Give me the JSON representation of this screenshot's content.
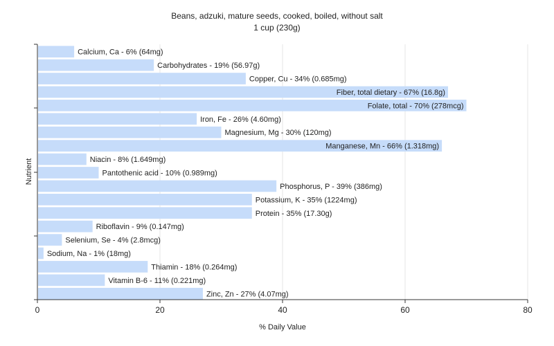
{
  "chart_data": {
    "type": "bar",
    "orientation": "horizontal",
    "title": "Beans, adzuki, mature seeds, cooked, boiled, without salt",
    "subtitle": "1 cup (230g)",
    "xlabel": "% Daily Value",
    "ylabel": "Nutrient",
    "xlim": [
      0,
      80
    ],
    "xticks": [
      "0",
      "20",
      "40",
      "60",
      "80"
    ],
    "grid": true,
    "bar_color": "#c6dcfa",
    "bars": [
      {
        "label": "Calcium, Ca - 6% (64mg)",
        "value": 6
      },
      {
        "label": "Carbohydrates - 19% (56.97g)",
        "value": 19
      },
      {
        "label": "Copper, Cu - 34% (0.685mg)",
        "value": 34
      },
      {
        "label": "Fiber, total dietary - 67% (16.8g)",
        "value": 67
      },
      {
        "label": "Folate, total - 70% (278mcg)",
        "value": 70
      },
      {
        "label": "Iron, Fe - 26% (4.60mg)",
        "value": 26
      },
      {
        "label": "Magnesium, Mg - 30% (120mg)",
        "value": 30
      },
      {
        "label": "Manganese, Mn - 66% (1.318mg)",
        "value": 66
      },
      {
        "label": "Niacin - 8% (1.649mg)",
        "value": 8
      },
      {
        "label": "Pantothenic acid - 10% (0.989mg)",
        "value": 10
      },
      {
        "label": "Phosphorus, P - 39% (386mg)",
        "value": 39
      },
      {
        "label": "Potassium, K - 35% (1224mg)",
        "value": 35
      },
      {
        "label": "Protein - 35% (17.30g)",
        "value": 35
      },
      {
        "label": "Riboflavin - 9% (0.147mg)",
        "value": 9
      },
      {
        "label": "Selenium, Se - 4% (2.8mcg)",
        "value": 4
      },
      {
        "label": "Sodium, Na - 1% (18mg)",
        "value": 1
      },
      {
        "label": "Thiamin - 18% (0.264mg)",
        "value": 18
      },
      {
        "label": "Vitamin B-6 - 11% (0.221mg)",
        "value": 11
      },
      {
        "label": "Zinc, Zn - 27% (4.07mg)",
        "value": 27
      }
    ]
  }
}
